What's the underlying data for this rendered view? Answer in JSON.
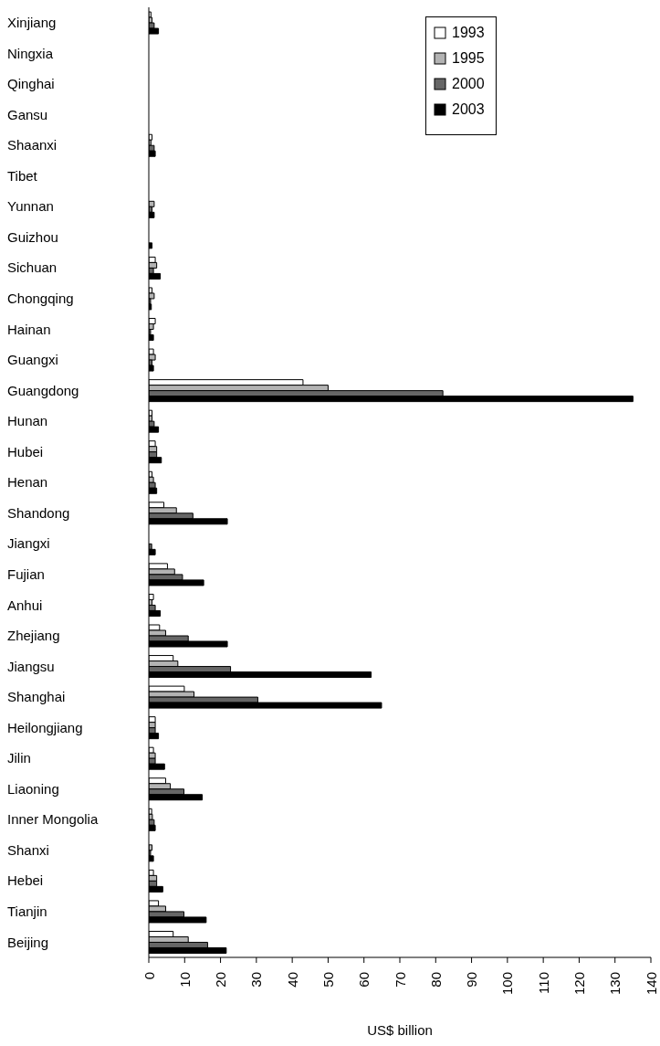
{
  "chart_data": {
    "type": "bar",
    "orientation": "horizontal",
    "xlabel": "US$ billion",
    "categories": [
      "Xinjiang",
      "Ningxia",
      "Qinghai",
      "Gansu",
      "Shaanxi",
      "Tibet",
      "Yunnan",
      "Guizhou",
      "Sichuan",
      "Chongqing",
      "Hainan",
      "Guangxi",
      "Guangdong",
      "Hunan",
      "Hubei",
      "Henan",
      "Shandong",
      "Jiangxi",
      "Fujian",
      "Anhui",
      "Zhejiang",
      "Jiangsu",
      "Shanghai",
      "Heilongjiang",
      "Jilin",
      "Liaoning",
      "Inner Mongolia",
      "Shanxi",
      "Hebei",
      "Tianjin",
      "Beijing"
    ],
    "series": [
      {
        "name": "1993",
        "color": "#ffffff",
        "values": [
          0.6,
          0,
          0,
          0,
          0.9,
          0,
          0,
          0,
          1.8,
          0.9,
          1.8,
          1.3,
          43,
          0.9,
          1.8,
          0.9,
          4.2,
          null,
          5.2,
          1.3,
          3,
          6.8,
          9.9,
          1.8,
          1.3,
          4.7,
          0.8,
          null,
          1.3,
          2.7,
          6.8
        ]
      },
      {
        "name": "1995",
        "color": "#b3b3b3",
        "values": [
          0.9,
          0,
          0,
          0,
          0.6,
          0,
          1.5,
          0,
          2.2,
          1.5,
          1.3,
          1.8,
          50,
          0.9,
          2.2,
          1.3,
          7.7,
          null,
          7.2,
          0.9,
          4.7,
          8.1,
          12.6,
          1.8,
          1.8,
          6,
          1,
          0.9,
          2.2,
          4.7,
          11
        ]
      },
      {
        "name": "2000",
        "color": "#666666",
        "values": [
          1.5,
          0,
          0,
          0,
          1.5,
          0,
          0.9,
          0,
          1.3,
          0.5,
          0.5,
          0.9,
          82,
          1.5,
          2.2,
          1.8,
          12.3,
          0.8,
          9.4,
          1.8,
          11,
          22.8,
          30.4,
          1.8,
          1.8,
          9.8,
          1.5,
          0.5,
          2.2,
          9.8,
          16.4
        ]
      },
      {
        "name": "2003",
        "color": "#000000",
        "values": [
          2.7,
          0,
          0,
          0,
          1.8,
          0,
          1.5,
          0.9,
          3.2,
          0.7,
          1.3,
          1.3,
          135,
          2.7,
          3.5,
          2.2,
          21.9,
          1.8,
          15.3,
          3.2,
          21.9,
          62,
          64.9,
          2.7,
          4.4,
          14.9,
          1.8,
          1.3,
          3.9,
          16,
          21.6
        ]
      }
    ],
    "xlim": [
      0,
      140
    ],
    "xticks": [
      0,
      10,
      20,
      30,
      40,
      50,
      60,
      70,
      80,
      90,
      100,
      110,
      120,
      130,
      140
    ],
    "legend": "top right"
  }
}
